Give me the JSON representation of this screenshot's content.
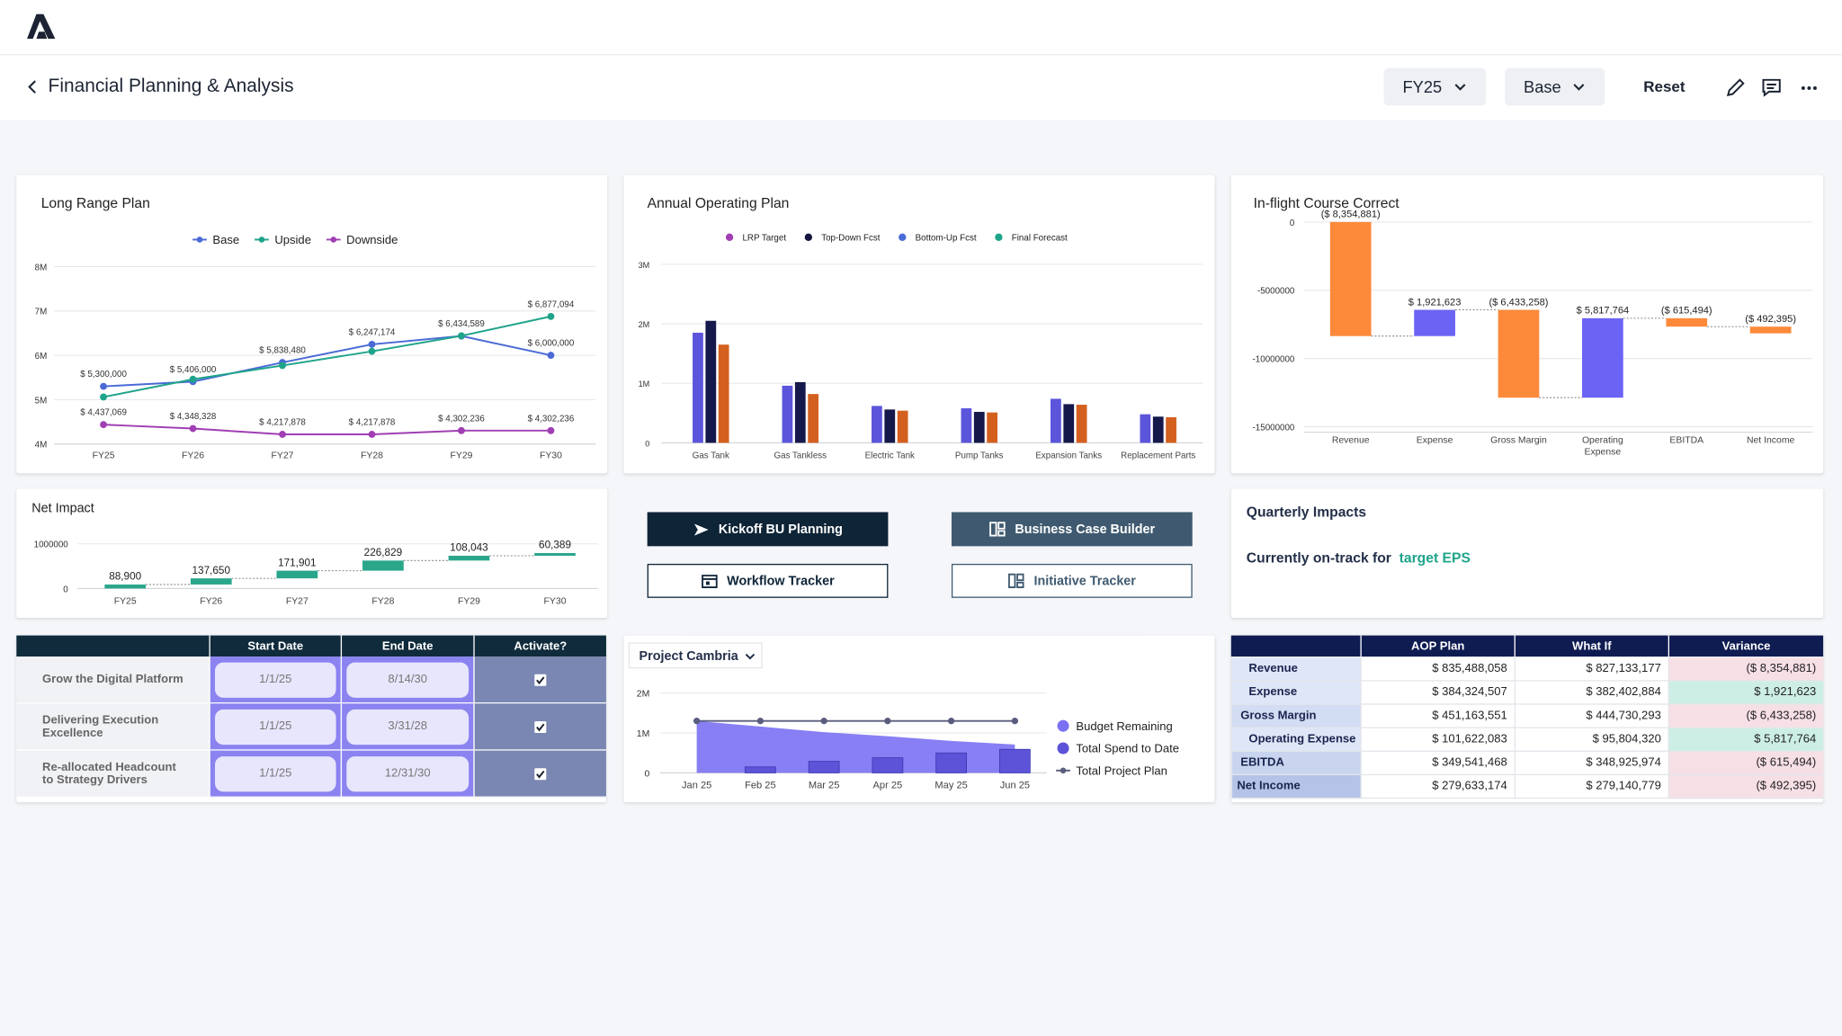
{
  "header": {
    "title": "Financial Planning & Analysis",
    "fiscal_year": "FY25",
    "scenario": "Base",
    "reset": "Reset"
  },
  "chart_data": [
    {
      "type": "line",
      "title": "Long Range Plan",
      "categories": [
        "FY25",
        "FY26",
        "FY27",
        "FY28",
        "FY29",
        "FY30"
      ],
      "ylim": [
        4000000,
        8000000
      ],
      "yticks": [
        {
          "value": 4000000,
          "label": "4M"
        },
        {
          "value": 5000000,
          "label": "5M"
        },
        {
          "value": 6000000,
          "label": "6M"
        },
        {
          "value": 7000000,
          "label": "7M"
        },
        {
          "value": 8000000,
          "label": "8M"
        }
      ],
      "grid": true,
      "series": [
        {
          "name": "Base",
          "color": "#4a6ad6",
          "values": [
            5300000,
            5406000,
            5838480,
            6247174,
            6434589,
            6000000
          ],
          "value_labels": [
            "$ 5,300,000",
            "$ 5,406,000",
            "$ 5,838,480",
            "$ 6,247,174",
            "$ 6,434,589",
            "$ 6,000,000"
          ]
        },
        {
          "name": "Upside",
          "color": "#1fa48a",
          "values": [
            5060000,
            5460000,
            5770000,
            6090000,
            6440000,
            6877094
          ],
          "value_labels": [
            null,
            null,
            null,
            null,
            null,
            "$ 6,877,094"
          ]
        },
        {
          "name": "Downside",
          "color": "#a03fb3",
          "values": [
            4437069,
            4348328,
            4217878,
            4217878,
            4302236,
            4302236
          ],
          "value_labels": [
            "$ 4,437,069",
            "$ 4,348,328",
            "$ 4,217,878",
            "$ 4,217,878",
            "$ 4,302,236",
            "$ 4,302,236"
          ]
        }
      ]
    },
    {
      "type": "bar",
      "title": "Annual Operating Plan",
      "categories": [
        "Gas Tank",
        "Gas Tankless",
        "Electric Tank",
        "Pump Tanks",
        "Expansion Tanks",
        "Replacement Parts"
      ],
      "ylim": [
        0,
        3000000
      ],
      "yticks": [
        0,
        {
          "value": 1000000,
          "label": "1M"
        },
        {
          "value": 2000000,
          "label": "2M"
        },
        {
          "value": 3000000,
          "label": "3M"
        }
      ],
      "grid": true,
      "series": [
        {
          "name": "LRP Target",
          "color": "#a03fb3",
          "bar_color": "#5b55db",
          "values": [
            1850000,
            960000,
            620000,
            580000,
            740000,
            480000
          ]
        },
        {
          "name": "Top-Down Fcst",
          "color": "#14163f",
          "bar_color": "#15184a",
          "values": [
            2050000,
            1020000,
            560000,
            520000,
            650000,
            440000
          ]
        },
        {
          "name": "Bottom-Up Fcst",
          "color": "#4a6ad6",
          "bar_color": "#d4601f",
          "values": [
            1650000,
            820000,
            540000,
            510000,
            640000,
            430000
          ]
        },
        {
          "name": "Final Forecast",
          "color": "#1fa48a",
          "values": [
            null,
            null,
            null,
            null,
            null,
            null
          ]
        }
      ]
    },
    {
      "type": "waterfall",
      "title": "In-flight Course Correct",
      "categories": [
        "Revenue",
        "Expense",
        "Gross Margin",
        "Operating Expense",
        "EBITDA",
        "Net Income"
      ],
      "values": [
        -8354881,
        1921623,
        -6433258,
        5817764,
        -615494,
        -492395
      ],
      "value_labels": [
        "($ 8,354,881)",
        "$ 1,921,623",
        "($ 6,433,258)",
        "$ 5,817,764",
        "($ 615,494)",
        "($ 492,395)"
      ],
      "ylim": [
        -15400000,
        0
      ],
      "yticks": [
        -15000000,
        -10000000,
        -5000000,
        0
      ],
      "grid": true,
      "increase_color": "#6b63f4",
      "decrease_color": "#fd8a3b"
    },
    {
      "type": "waterfall",
      "title": "Net Impact",
      "categories": [
        "FY25",
        "FY26",
        "FY27",
        "FY28",
        "FY29",
        "FY30"
      ],
      "values": [
        88900,
        137650,
        171901,
        226829,
        108043,
        60389
      ],
      "value_labels": [
        "88,900",
        "137,650",
        "171,901",
        "226,829",
        "108,043",
        "60,389"
      ],
      "ylim": [
        0,
        1000000
      ],
      "yticks": [
        0,
        1000000
      ],
      "grid": true,
      "color": "#2aa68b"
    },
    {
      "type": "combo",
      "title": "Project Cambria",
      "categories": [
        "Jan 25",
        "Feb 25",
        "Mar 25",
        "Apr 25",
        "May 25",
        "Jun 25"
      ],
      "ylim": [
        0,
        2000000
      ],
      "yticks": [
        0,
        {
          "value": 1000000,
          "label": "1M"
        },
        {
          "value": 2000000,
          "label": "2M"
        }
      ],
      "grid": true,
      "series": [
        {
          "name": "Budget Remaining",
          "kind": "area",
          "color": "#7b71f3",
          "values": [
            1300000,
            1160000,
            1020000,
            920000,
            800000,
            710000
          ]
        },
        {
          "name": "Total Spend to Date",
          "kind": "bar",
          "color": "#5d53d8",
          "values": [
            0,
            150000,
            290000,
            380000,
            500000,
            590000
          ]
        },
        {
          "name": "Total Project Plan",
          "kind": "line",
          "color": "#5a5e7e",
          "values": [
            1300000,
            1300000,
            1300000,
            1300000,
            1300000,
            1300000
          ]
        }
      ]
    }
  ],
  "actions": {
    "buttons": [
      "Kickoff BU Planning",
      "Business Case Builder",
      "Workflow Tracker",
      "Initiative Tracker"
    ]
  },
  "quarterly_impacts": {
    "title": "Quarterly Impacts",
    "text": "Currently on-track for",
    "highlight": "target EPS"
  },
  "initiatives": {
    "columns": [
      "Start Date",
      "End Date",
      "Activate?"
    ],
    "rows": [
      {
        "name": "Grow the Digital Platform",
        "start": "1/1/25",
        "end": "8/14/30",
        "activate": true
      },
      {
        "name": "Delivering Execution Excellence",
        "start": "1/1/25",
        "end": "3/31/28",
        "activate": true
      },
      {
        "name": "Re-allocated Headcount to Strategy Drivers",
        "start": "1/1/25",
        "end": "12/31/30",
        "activate": true
      }
    ]
  },
  "variance_table": {
    "columns": [
      "AOP Plan",
      "What If",
      "Variance"
    ],
    "rows": [
      [
        "Revenue",
        "$ 835,488,058",
        "$ 827,133,177",
        "($ 8,354,881)"
      ],
      [
        "Expense",
        "$ 384,324,507",
        "$ 382,402,884",
        "$ 1,921,623"
      ],
      [
        "Gross Margin",
        "$ 451,163,551",
        "$ 444,730,293",
        "($ 6,433,258)"
      ],
      [
        "Operating Expense",
        "$ 101,622,083",
        "$ 95,804,320",
        "$ 5,817,764"
      ],
      [
        "EBITDA",
        "$ 349,541,468",
        "$ 348,925,974",
        "($ 615,494)"
      ],
      [
        "Net Income",
        "$ 279,633,174",
        "$ 279,140,779",
        "($ 492,395)"
      ]
    ]
  }
}
